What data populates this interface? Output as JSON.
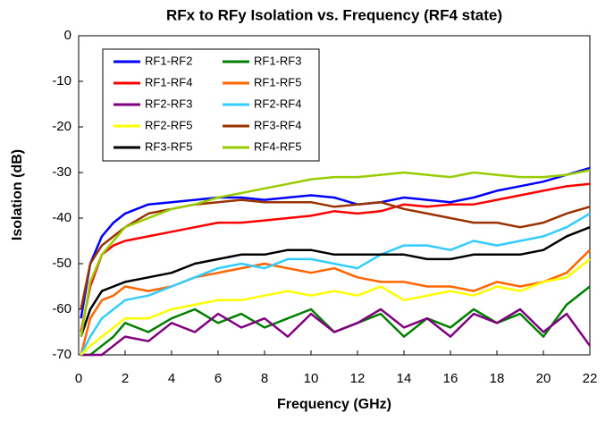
{
  "chart_data": {
    "type": "line",
    "title": "RFx to RFy Isolation vs. Frequency (RF4 state)",
    "xlabel": "Frequency (GHz)",
    "ylabel": "Isolation (dB)",
    "x": [
      0.1,
      0.5,
      1,
      1.5,
      2,
      3,
      4,
      5,
      6,
      7,
      8,
      9,
      10,
      11,
      12,
      13,
      14,
      15,
      16,
      17,
      18,
      19,
      20,
      21,
      22
    ],
    "xlim": [
      0,
      22
    ],
    "xticks": [
      0,
      2,
      4,
      6,
      8,
      10,
      12,
      14,
      16,
      18,
      20,
      22
    ],
    "ylim": [
      -70,
      0
    ],
    "yticks": [
      0,
      -10,
      -20,
      -30,
      -40,
      -50,
      -60,
      -70
    ],
    "grid": false,
    "legend": "upper left",
    "series": [
      {
        "name": "RF1-RF2",
        "color": "#0000ff",
        "values": [
          -62,
          -50,
          -44,
          -41,
          -39,
          -37,
          -36.5,
          -36,
          -35.5,
          -35.5,
          -36,
          -35.5,
          -35,
          -35.5,
          -37,
          -36.5,
          -35.5,
          -36,
          -36.5,
          -35.5,
          -34,
          -33,
          -32,
          -30.5,
          -29
        ]
      },
      {
        "name": "RF1-RF3",
        "color": "#008000",
        "values": [
          -70,
          -70,
          -68,
          -66,
          -63,
          -65,
          -62,
          -60,
          -63,
          -61,
          -64,
          -62,
          -60,
          -65,
          -63,
          -61,
          -66,
          -62,
          -64,
          -60,
          -63,
          -61,
          -66,
          -59,
          -55
        ]
      },
      {
        "name": "RF1-RF4",
        "color": "#ff0000",
        "values": [
          -65,
          -55,
          -48,
          -46,
          -45,
          -44,
          -43,
          -42,
          -41,
          -41,
          -40.5,
          -40,
          -39.5,
          -38.5,
          -39,
          -38.5,
          -37,
          -37.5,
          -37,
          -37,
          -36,
          -35,
          -34,
          -33,
          -32.5
        ]
      },
      {
        "name": "RF1-RF5",
        "color": "#ff6600",
        "values": [
          -70,
          -62,
          -58,
          -57,
          -55,
          -56,
          -55,
          -53,
          -52,
          -51,
          -50,
          -51,
          -52,
          -51,
          -53,
          -54,
          -54,
          -55,
          -55,
          -56,
          -54,
          -55,
          -54,
          -52,
          -47
        ]
      },
      {
        "name": "RF2-RF3",
        "color": "#800080",
        "values": [
          -70,
          -70,
          -70,
          -68,
          -66,
          -67,
          -63,
          -65,
          -61,
          -64,
          -62,
          -66,
          -61,
          -65,
          -63,
          -60,
          -64,
          -62,
          -66,
          -61,
          -63,
          -60,
          -65,
          -61,
          -68
        ]
      },
      {
        "name": "RF2-RF4",
        "color": "#33ccff",
        "values": [
          -70,
          -66,
          -62,
          -60,
          -58,
          -57,
          -55,
          -53,
          -51,
          -50,
          -51,
          -49,
          -49,
          -50,
          -51,
          -48,
          -46,
          -46,
          -47,
          -45,
          -46,
          -45,
          -44,
          -42,
          -39
        ]
      },
      {
        "name": "RF2-RF5",
        "color": "#ffff00",
        "values": [
          -70,
          -68,
          -66,
          -64,
          -62,
          -62,
          -60,
          -59,
          -58,
          -58,
          -57,
          -56,
          -57,
          -56,
          -57,
          -55,
          -58,
          -57,
          -56,
          -57,
          -55,
          -56,
          -54,
          -53,
          -49
        ]
      },
      {
        "name": "RF3-RF4",
        "color": "#993300",
        "values": [
          -60,
          -50,
          -46,
          -44,
          -42,
          -39,
          -38,
          -37,
          -36.5,
          -36,
          -36.5,
          -36.5,
          -36.5,
          -37.5,
          -37,
          -36.5,
          -38,
          -39,
          -40,
          -41,
          -41,
          -42,
          -41,
          -39,
          -37.5
        ]
      },
      {
        "name": "RF3-RF5",
        "color": "#000000",
        "values": [
          -66,
          -60,
          -56,
          -55,
          -54,
          -53,
          -52,
          -50,
          -49,
          -48,
          -48,
          -47,
          -47,
          -48,
          -48,
          -48,
          -48,
          -49,
          -49,
          -48,
          -48,
          -48,
          -47,
          -44,
          -42
        ]
      },
      {
        "name": "RF4-RF5",
        "color": "#99cc00",
        "values": [
          -66,
          -54,
          -48,
          -45,
          -42,
          -40,
          -38,
          -37,
          -35.5,
          -34.5,
          -33.5,
          -32.5,
          -31.5,
          -31,
          -31,
          -30.5,
          -30,
          -30.5,
          -31,
          -30,
          -30.5,
          -31,
          -31,
          -30.5,
          -29.5
        ]
      }
    ]
  }
}
